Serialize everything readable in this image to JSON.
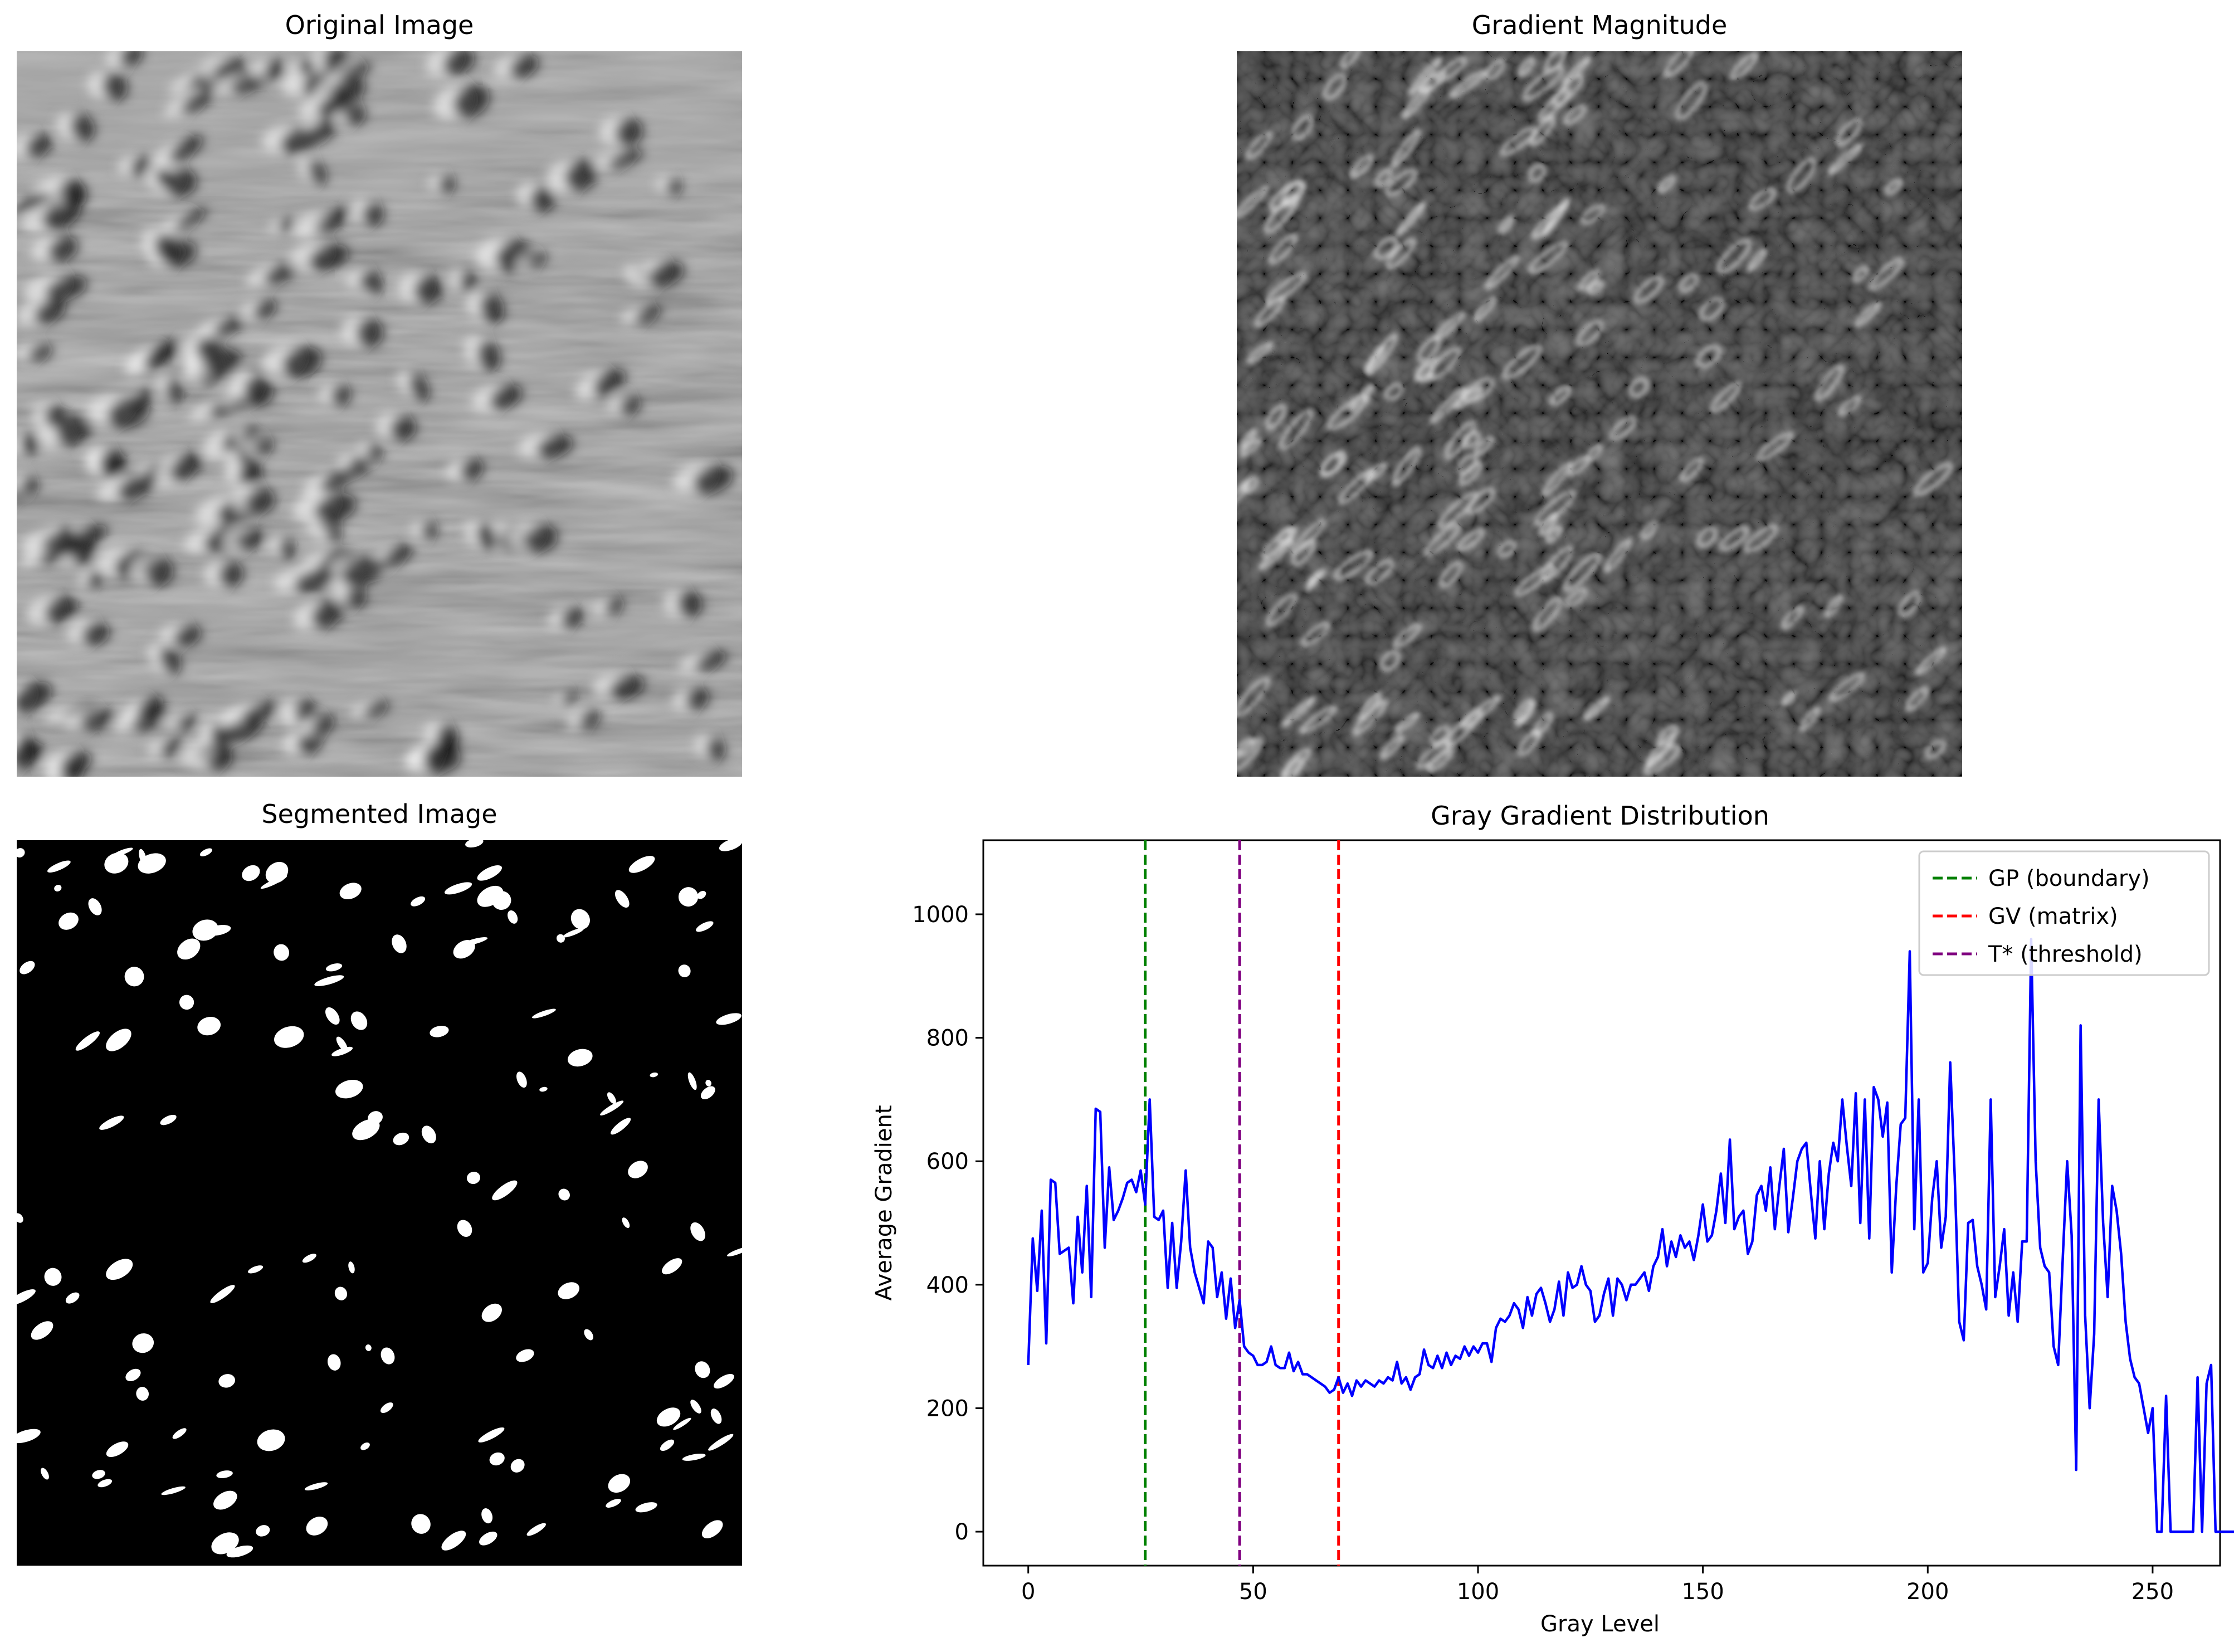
{
  "panels": {
    "original": {
      "title": "Original Image"
    },
    "gradient": {
      "title": "Gradient Magnitude"
    },
    "segmented": {
      "title": "Segmented Image"
    }
  },
  "chart_data": {
    "type": "line",
    "title": "Gray Gradient Distribution",
    "xlabel": "Gray Level",
    "ylabel": "Average Gradient",
    "xlim": [
      -10,
      265
    ],
    "ylim": [
      -55,
      1120
    ],
    "xticks": [
      0,
      50,
      100,
      150,
      200,
      250
    ],
    "yticks": [
      0,
      200,
      400,
      600,
      800,
      1000
    ],
    "grid": false,
    "legend_position": "top-right",
    "series": [
      {
        "color": "#0000ff",
        "x_start": 0,
        "x_step": 1,
        "values": [
          270,
          475,
          390,
          520,
          305,
          570,
          565,
          450,
          455,
          460,
          370,
          510,
          420,
          560,
          380,
          685,
          680,
          460,
          590,
          505,
          520,
          540,
          565,
          570,
          550,
          585,
          530,
          700,
          510,
          505,
          520,
          395,
          500,
          395,
          470,
          585,
          460,
          420,
          395,
          370,
          470,
          460,
          380,
          420,
          345,
          410,
          330,
          375,
          300,
          290,
          285,
          270,
          270,
          275,
          300,
          270,
          265,
          265,
          290,
          260,
          275,
          255,
          255,
          250,
          245,
          240,
          235,
          225,
          230,
          250,
          225,
          240,
          220,
          245,
          235,
          245,
          240,
          235,
          245,
          240,
          250,
          245,
          275,
          240,
          250,
          230,
          250,
          255,
          295,
          270,
          265,
          285,
          265,
          290,
          270,
          285,
          280,
          300,
          285,
          300,
          290,
          305,
          305,
          275,
          330,
          345,
          340,
          350,
          370,
          360,
          330,
          380,
          350,
          385,
          395,
          370,
          340,
          360,
          405,
          350,
          420,
          395,
          400,
          430,
          400,
          390,
          340,
          350,
          385,
          410,
          350,
          410,
          400,
          375,
          400,
          400,
          410,
          420,
          390,
          430,
          445,
          490,
          430,
          470,
          445,
          480,
          460,
          470,
          440,
          480,
          530,
          470,
          480,
          520,
          580,
          500,
          635,
          490,
          510,
          520,
          450,
          470,
          545,
          560,
          520,
          590,
          490,
          560,
          620,
          485,
          540,
          600,
          620,
          630,
          550,
          475,
          600,
          490,
          580,
          630,
          600,
          700,
          625,
          560,
          710,
          500,
          700,
          475,
          720,
          700,
          640,
          695,
          420,
          560,
          660,
          670,
          940,
          490,
          700,
          420,
          435,
          540,
          600,
          460,
          510,
          760,
          575,
          340,
          310,
          500,
          505,
          430,
          400,
          360,
          700,
          380,
          430,
          490,
          350,
          420,
          340,
          470,
          470,
          960,
          600,
          460,
          430,
          420,
          300,
          270,
          440,
          600,
          480,
          100,
          820,
          350,
          200,
          320,
          700,
          500,
          380,
          560,
          520,
          450,
          340,
          280,
          250,
          240,
          200,
          160,
          200,
          0,
          0,
          220,
          0,
          0,
          0,
          0,
          0,
          0,
          250,
          0,
          240,
          270,
          0,
          0,
          0,
          0,
          0,
          0,
          0,
          0,
          0,
          0,
          0,
          0,
          0,
          0,
          0,
          0,
          0,
          0,
          0,
          0,
          0,
          0,
          0,
          0,
          0,
          0,
          0,
          0,
          0,
          0,
          0,
          0
        ]
      }
    ],
    "vlines": [
      {
        "x": 26,
        "color": "#008000",
        "label": "GP (boundary)"
      },
      {
        "x": 69,
        "color": "#ff0000",
        "label": "GV (matrix)"
      },
      {
        "x": 47,
        "color": "#800080",
        "label": "T* (threshold)"
      }
    ]
  }
}
